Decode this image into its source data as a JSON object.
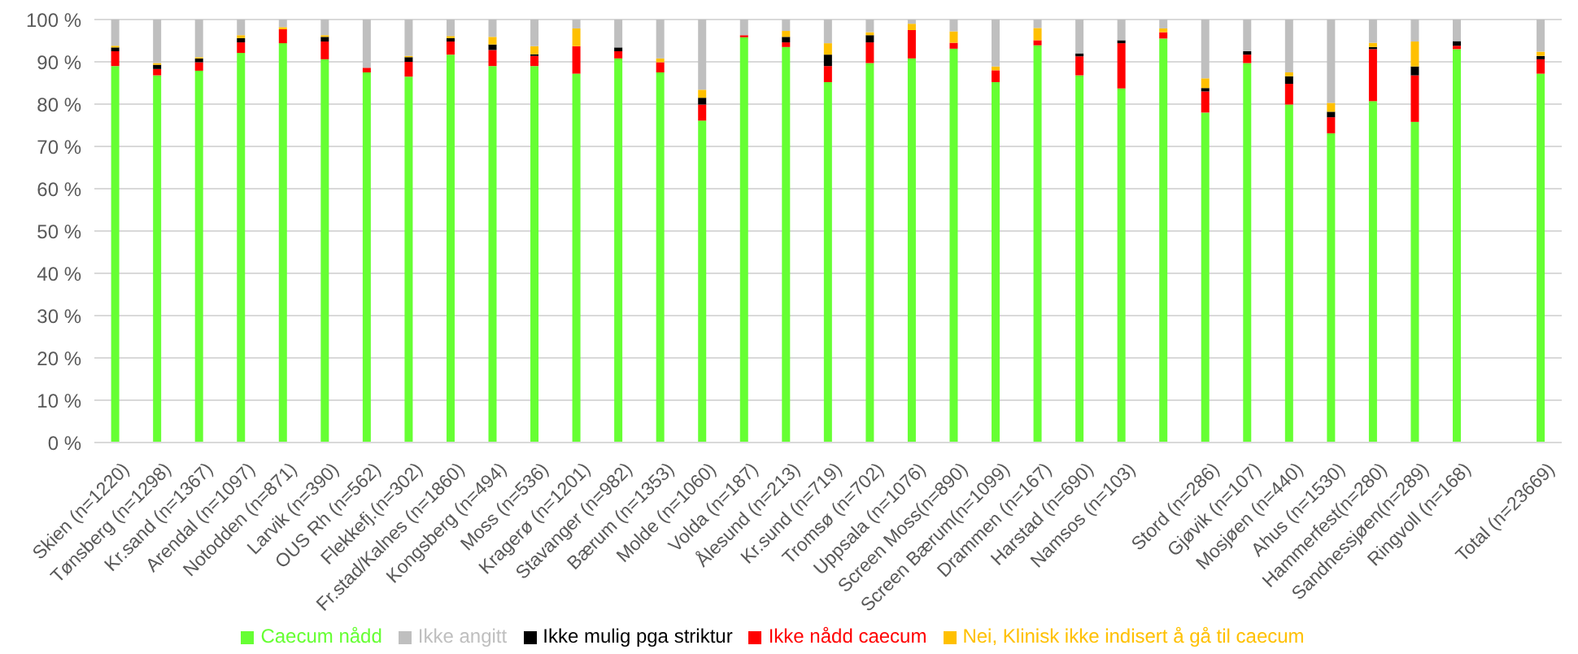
{
  "chart_data": {
    "type": "bar",
    "stacked": true,
    "categories": [
      "Skien (n=1220)",
      "Tønsberg (n=1298)",
      "Kr.sand (n=1367)",
      "Arendal (n=1097)",
      "Notodden (n=871)",
      "Larvik (n=390)",
      "OUS Rh (n=562)",
      "Flekkefj.(n=302)",
      "Fr.stad/Kalnes (n=1860)",
      "Kongsberg (n=494)",
      "Moss (n=536)",
      "Kragerø (n=1201)",
      "Stavanger (n=982)",
      "Bærum (n=1353)",
      "Molde (n=1060)",
      "Volda (n=187)",
      "Ålesund (n=213)",
      "Kr.sund (n=719)",
      "Tromsø (n=702)",
      "Uppsala (n=1076)",
      "Screen Moss(n=890)",
      "Screen Bærum(n=1099)",
      "Drammen (n=167)",
      "Harstad (n=690)",
      "Namsos (n=103)",
      null,
      "Stord (n=286)",
      "Gjøvik (n=107)",
      "Mosjøen (n=440)",
      "Ahus (n=1530)",
      "Hammerfest(n=280)",
      "Sandnessjøen(n=289)",
      "Ringvoll (n=168)",
      null,
      "Total (n=23669)"
    ],
    "series": [
      {
        "name": "Caecum nådd",
        "color": "#66ff33",
        "values": [
          89,
          86.8,
          87.9,
          92.1,
          94.4,
          90.6,
          87.5,
          86.5,
          91.7,
          89,
          89,
          87.2,
          90.8,
          87.5,
          76.1,
          95.8,
          93.5,
          85.2,
          89.7,
          90.8,
          93.1,
          85.2,
          93.9,
          86.8,
          83.7,
          95.5,
          78,
          89.7,
          79.9,
          73.1,
          80.7,
          75.8,
          93,
          null,
          87.2
        ]
      },
      {
        "name": "Ikke nådd caecum",
        "color": "#ff0000",
        "values": [
          3.5,
          1.5,
          2,
          2.5,
          3.3,
          4.2,
          1.1,
          3.5,
          3.1,
          3.8,
          2.4,
          6.5,
          1.7,
          2.4,
          3.8,
          0.5,
          1.1,
          3.8,
          4.9,
          6.7,
          1.4,
          2.8,
          1.2,
          4.5,
          10.7,
          1.5,
          5,
          2,
          4.9,
          3.8,
          12.3,
          11,
          0.8,
          null,
          3.4
        ]
      },
      {
        "name": "Ikke mulig pga striktur",
        "color": "#000000",
        "values": [
          0.9,
          1,
          0.9,
          1,
          0,
          1.1,
          0,
          1.1,
          0.8,
          1.3,
          0.4,
          0,
          0.9,
          0,
          1.6,
          0,
          1.3,
          2.7,
          1.7,
          0,
          0,
          0,
          0,
          0.7,
          0.7,
          0,
          0.8,
          0.8,
          1.8,
          1.3,
          0.5,
          2.1,
          1.1,
          null,
          0.8
        ]
      },
      {
        "name": "Nei, Klinisk ikke indisert å gå til caecum",
        "color": "#ffc000",
        "values": [
          0.4,
          0.4,
          0.3,
          0.7,
          0.5,
          0.4,
          0,
          0.3,
          0.5,
          1.8,
          1.9,
          4.2,
          0,
          0.9,
          1.9,
          0,
          1.4,
          2.7,
          0.7,
          1.5,
          2.7,
          0.9,
          2.9,
          0,
          0,
          0.9,
          2.3,
          0,
          0.9,
          2.1,
          1,
          5.9,
          0,
          null,
          1
        ]
      },
      {
        "name": "Ikke angitt",
        "color": "#bfbfbf",
        "values": [
          6.2,
          10.3,
          8.9,
          3.7,
          1.8,
          3.7,
          11.4,
          8.6,
          3.9,
          4.1,
          6.3,
          2.1,
          6.6,
          9.2,
          16.6,
          3.7,
          2.7,
          5.6,
          3,
          1,
          2.8,
          11.1,
          2,
          8,
          4.9,
          2.1,
          13.9,
          7.5,
          12.5,
          19.7,
          5.5,
          5.2,
          5.1,
          null,
          7.6
        ]
      }
    ],
    "ylim": [
      0,
      100
    ],
    "yticks": [
      {
        "value": 0,
        "label": "0 %"
      },
      {
        "value": 10,
        "label": "10 %"
      },
      {
        "value": 20,
        "label": "20 %"
      },
      {
        "value": 30,
        "label": "30 %"
      },
      {
        "value": 40,
        "label": "40 %"
      },
      {
        "value": 50,
        "label": "50 %"
      },
      {
        "value": 60,
        "label": "60 %"
      },
      {
        "value": 70,
        "label": "70 %"
      },
      {
        "value": 80,
        "label": "80 %"
      },
      {
        "value": 90,
        "label": "90 %"
      },
      {
        "value": 100,
        "label": "100 %"
      }
    ],
    "grid": "y",
    "legend": "bottom"
  }
}
